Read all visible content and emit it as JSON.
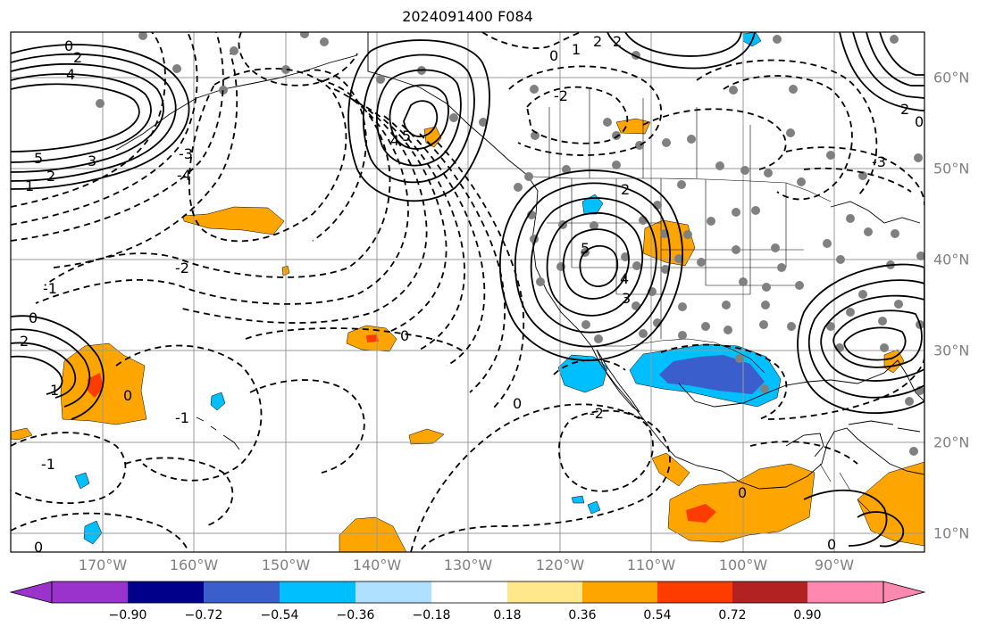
{
  "title": "2024091400 F084",
  "map": {
    "longitude_labels": [
      "170°W",
      "160°W",
      "150°W",
      "140°W",
      "130°W",
      "120°W",
      "110°W",
      "100°W",
      "90°W"
    ],
    "latitude_labels": [
      "60°N",
      "50°N",
      "40°N",
      "30°N",
      "20°N",
      "10°N"
    ],
    "contour_labels": [
      "0",
      "1",
      "2",
      "3",
      "4",
      "5",
      "-1",
      "-2",
      "-3",
      "-4",
      "-5"
    ],
    "gridlines": true,
    "contour_style": {
      "positive": "solid",
      "negative": "dashed",
      "color": "#000000"
    }
  },
  "colorbar": {
    "tick_labels": [
      "−0.90",
      "−0.72",
      "−0.54",
      "−0.36",
      "−0.18",
      "0.18",
      "0.36",
      "0.54",
      "0.72",
      "0.90"
    ],
    "colors": [
      "#9933cc",
      "#00008b",
      "#3a5fcd",
      "#00bfff",
      "#b0e0ff",
      "#ffffff",
      "#ffe88c",
      "#ffa500",
      "#ff3c00",
      "#b22222",
      "#ff88b0"
    ],
    "extend": "both"
  }
}
